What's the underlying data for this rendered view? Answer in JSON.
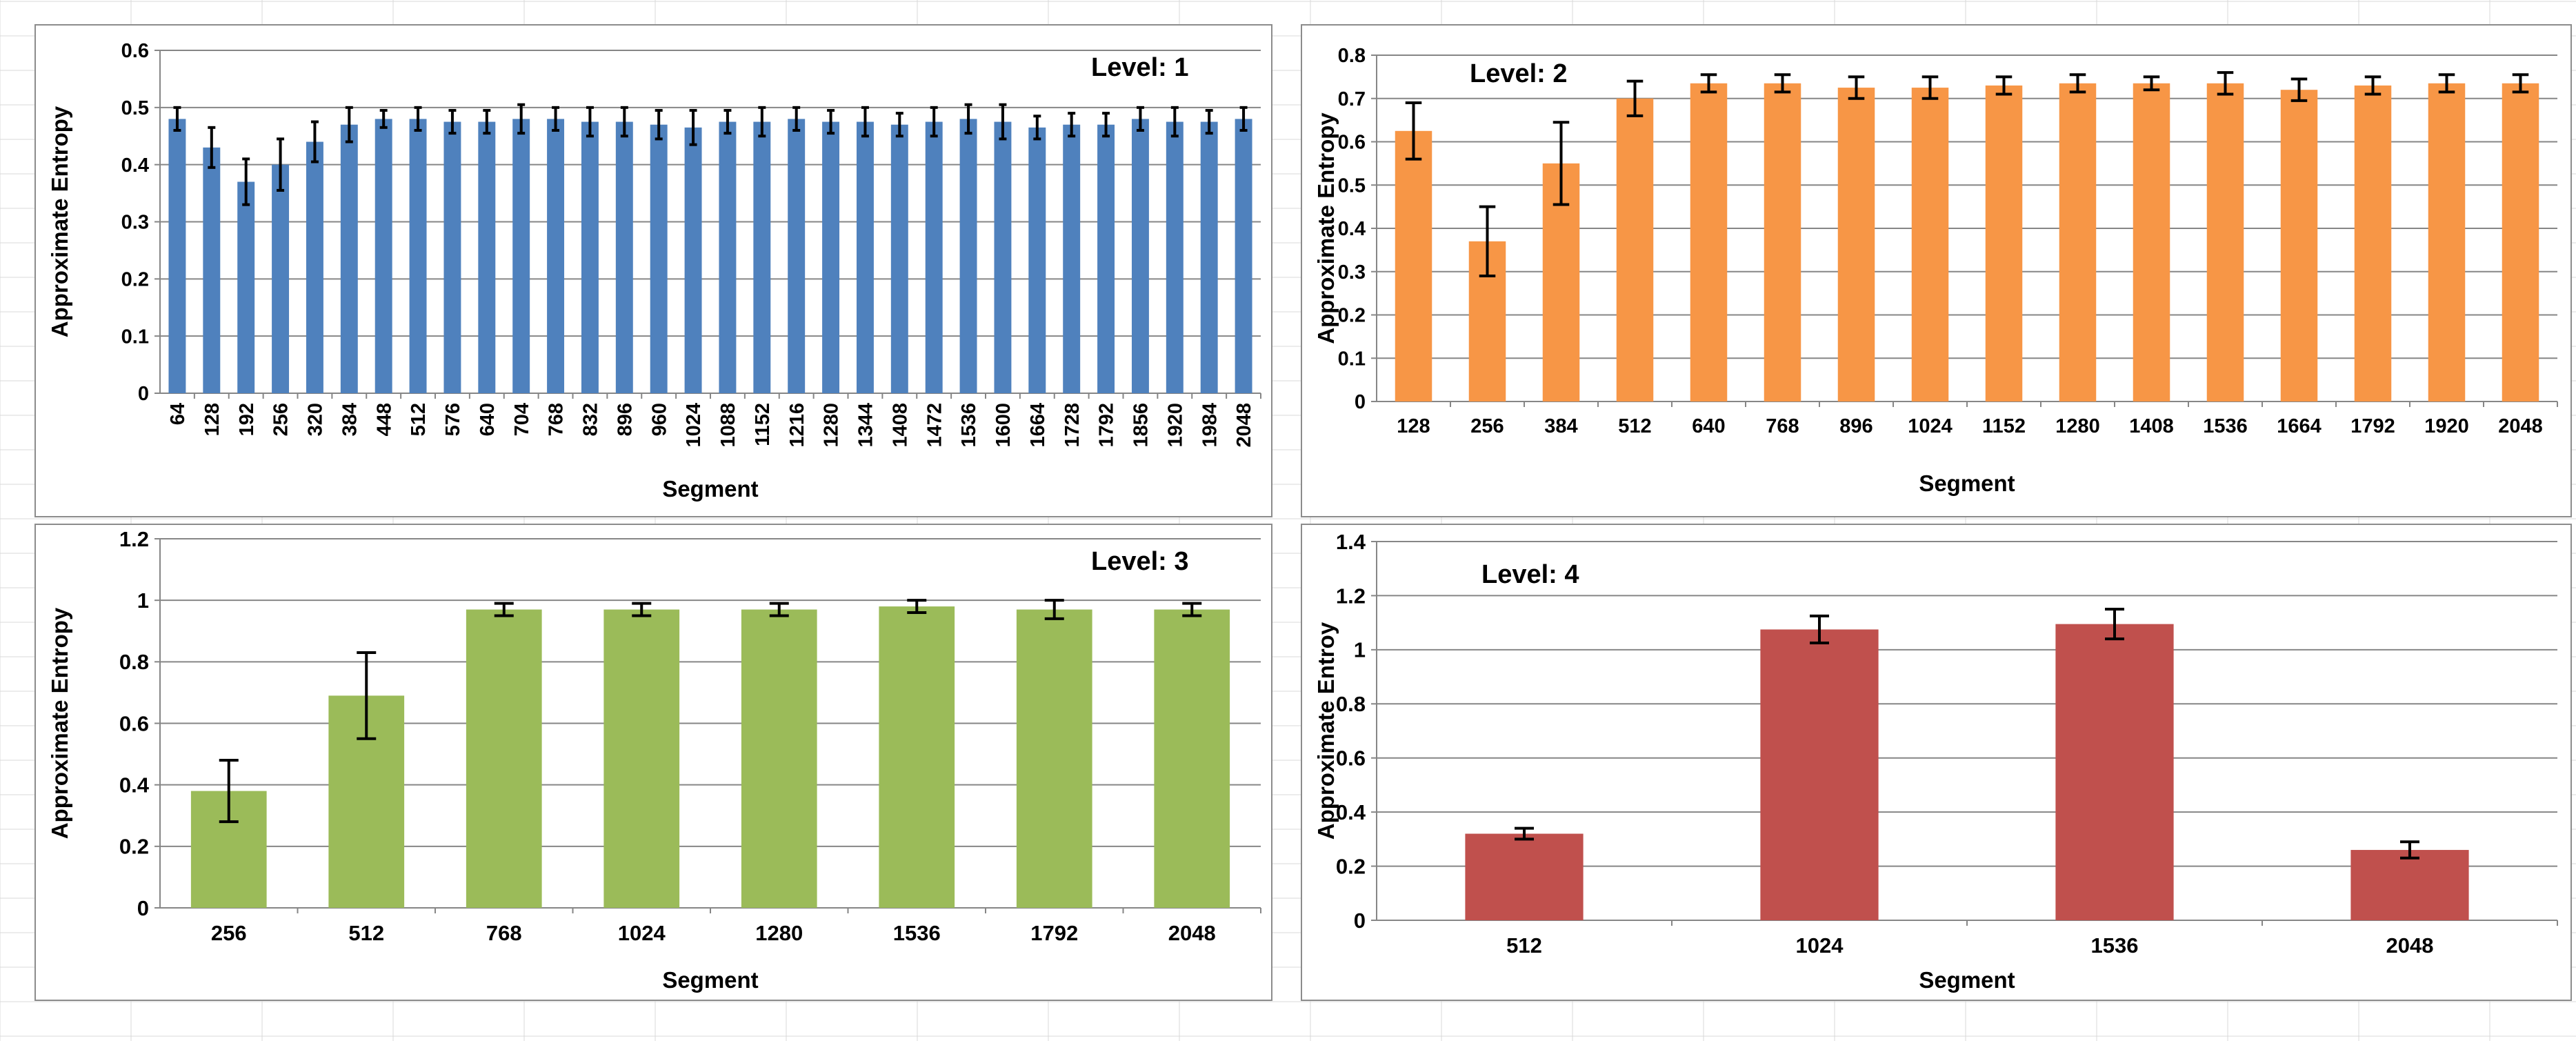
{
  "figure": {
    "background_grid_color": "#d9d9d9"
  },
  "chart_data": [
    {
      "type": "bar",
      "title": "Level: 1",
      "xlabel": "Segment",
      "ylabel": "Approximate Entropy",
      "color": "#4f81bd",
      "ylim": [
        0,
        0.6
      ],
      "yticks": [
        0,
        0.1,
        0.2,
        0.3,
        0.4,
        0.5,
        0.6
      ],
      "ytick_labels": [
        "0",
        "0.1",
        "0.2",
        "0.3",
        "0.4",
        "0.5",
        "0.6"
      ],
      "categories": [
        "64",
        "128",
        "192",
        "256",
        "320",
        "384",
        "448",
        "512",
        "576",
        "640",
        "704",
        "768",
        "832",
        "896",
        "960",
        "1024",
        "1088",
        "1152",
        "1216",
        "1280",
        "1344",
        "1408",
        "1472",
        "1536",
        "1600",
        "1664",
        "1728",
        "1792",
        "1856",
        "1920",
        "1984",
        "2048"
      ],
      "values": [
        0.48,
        0.43,
        0.37,
        0.4,
        0.44,
        0.47,
        0.48,
        0.48,
        0.475,
        0.475,
        0.48,
        0.48,
        0.475,
        0.475,
        0.47,
        0.465,
        0.475,
        0.475,
        0.48,
        0.475,
        0.475,
        0.47,
        0.475,
        0.48,
        0.475,
        0.465,
        0.47,
        0.47,
        0.48,
        0.475,
        0.475,
        0.48
      ],
      "errors": [
        0.02,
        0.035,
        0.04,
        0.045,
        0.035,
        0.03,
        0.015,
        0.02,
        0.02,
        0.02,
        0.025,
        0.02,
        0.025,
        0.025,
        0.025,
        0.03,
        0.02,
        0.025,
        0.02,
        0.02,
        0.025,
        0.02,
        0.025,
        0.025,
        0.03,
        0.02,
        0.02,
        0.02,
        0.02,
        0.025,
        0.02,
        0.02
      ],
      "x_tick_rotation": "vertical",
      "label_position": "top-right"
    },
    {
      "type": "bar",
      "title": "Level: 2",
      "xlabel": "Segment",
      "ylabel": "Approximate Entropy",
      "color": "#f79646",
      "ylim": [
        0,
        0.8
      ],
      "yticks": [
        0,
        0.1,
        0.2,
        0.3,
        0.4,
        0.5,
        0.6,
        0.7,
        0.8
      ],
      "ytick_labels": [
        "0",
        "0.1",
        "0.2",
        "0.3",
        "0.4",
        "0.5",
        "0.6",
        "0.7",
        "0.8"
      ],
      "categories": [
        "128",
        "256",
        "384",
        "512",
        "640",
        "768",
        "896",
        "1024",
        "1152",
        "1280",
        "1408",
        "1536",
        "1664",
        "1792",
        "1920",
        "2048"
      ],
      "values": [
        0.625,
        0.37,
        0.55,
        0.7,
        0.735,
        0.735,
        0.725,
        0.725,
        0.73,
        0.735,
        0.735,
        0.735,
        0.72,
        0.73,
        0.735,
        0.735
      ],
      "errors": [
        0.065,
        0.08,
        0.095,
        0.04,
        0.02,
        0.02,
        0.025,
        0.025,
        0.02,
        0.02,
        0.015,
        0.025,
        0.025,
        0.02,
        0.02,
        0.02
      ],
      "x_tick_rotation": "horizontal",
      "label_position": "top-left"
    },
    {
      "type": "bar",
      "title": "Level: 3",
      "xlabel": "Segment",
      "ylabel": "Approximate Entropy",
      "color": "#9bbb59",
      "ylim": [
        0,
        1.2
      ],
      "yticks": [
        0,
        0.2,
        0.4,
        0.6,
        0.8,
        1.0,
        1.2
      ],
      "ytick_labels": [
        "0",
        "0.2",
        "0.4",
        "0.6",
        "0.8",
        "1",
        "1.2"
      ],
      "categories": [
        "256",
        "512",
        "768",
        "1024",
        "1280",
        "1536",
        "1792",
        "2048"
      ],
      "values": [
        0.38,
        0.69,
        0.97,
        0.97,
        0.97,
        0.98,
        0.97,
        0.97
      ],
      "errors": [
        0.1,
        0.14,
        0.02,
        0.02,
        0.02,
        0.02,
        0.03,
        0.02
      ],
      "x_tick_rotation": "horizontal",
      "label_position": "top-right"
    },
    {
      "type": "bar",
      "title": "Level: 4",
      "xlabel": "Segment",
      "ylabel": "Approximate Entroy",
      "color": "#c0504d",
      "ylim": [
        0,
        1.4
      ],
      "yticks": [
        0,
        0.2,
        0.4,
        0.6,
        0.8,
        1.0,
        1.2,
        1.4
      ],
      "ytick_labels": [
        "0",
        "0.2",
        "0.4",
        "0.6",
        "0.8",
        "1",
        "1.2",
        "1.4"
      ],
      "categories": [
        "512",
        "1024",
        "1536",
        "2048"
      ],
      "values": [
        0.32,
        1.075,
        1.095,
        0.26
      ],
      "errors": [
        0.02,
        0.05,
        0.055,
        0.03
      ],
      "x_tick_rotation": "horizontal",
      "label_position": "top-left"
    }
  ]
}
